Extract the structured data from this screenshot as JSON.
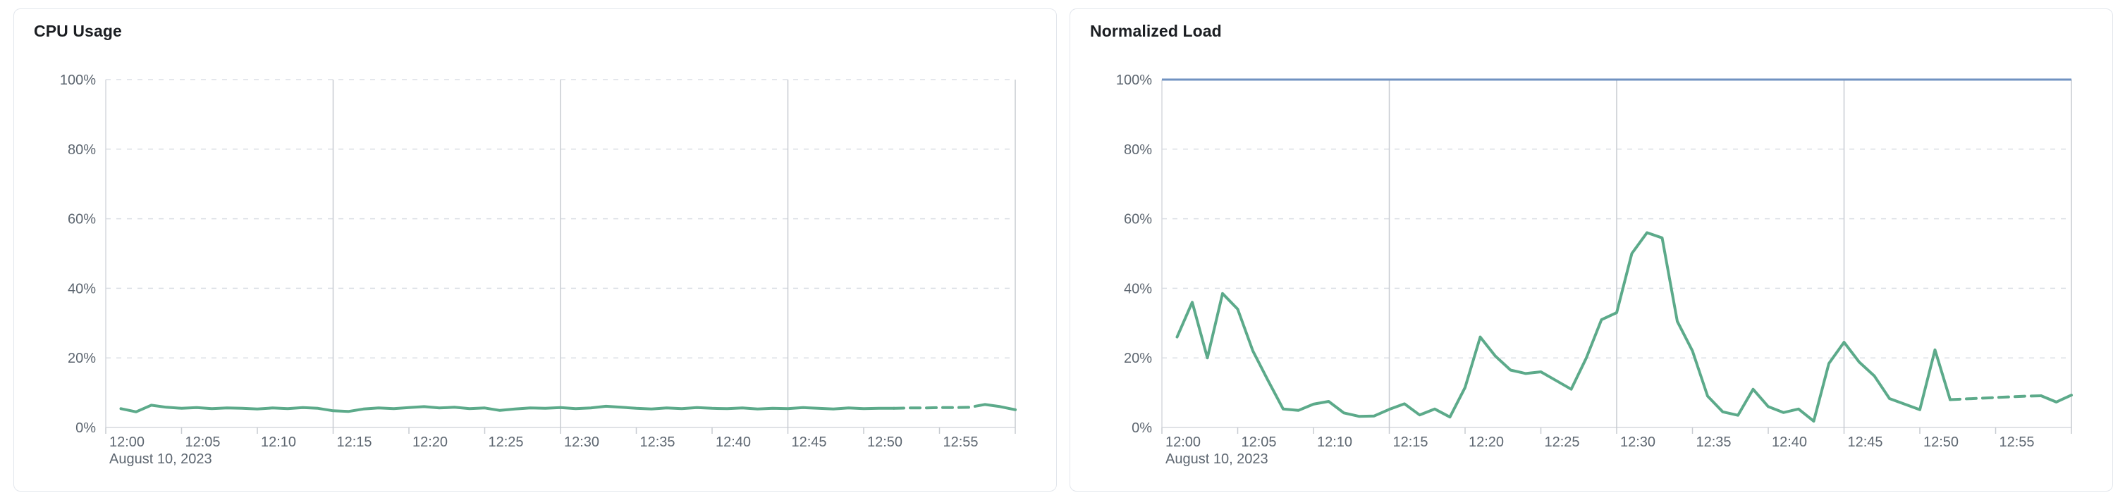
{
  "colors": {
    "card_background": "#ffffff",
    "card_border": "#e2e6ec",
    "title_text": "#1b1e22",
    "axis_text": "#5d6670",
    "grid_dashed": "#dbdfe5",
    "grid_solid_vertical": "#c7cbd1",
    "axis_line": "#d6d9de",
    "cpu_line_green": "#5caa8a",
    "limit_line_blue": "#7092c1"
  },
  "chart_data": [
    {
      "id": "cpu-usage",
      "type": "line",
      "title": "CPU Usage",
      "date_label": "August 10, 2023",
      "ylim": [
        0,
        100
      ],
      "grid": "on",
      "y_ticks": [
        {
          "v": 0,
          "label": "0%"
        },
        {
          "v": 20,
          "label": "20%"
        },
        {
          "v": 40,
          "label": "40%"
        },
        {
          "v": 60,
          "label": "60%"
        },
        {
          "v": 80,
          "label": "80%"
        },
        {
          "v": 100,
          "label": "100%"
        }
      ],
      "x_ticks": [
        {
          "min": 0,
          "label": "12:00"
        },
        {
          "min": 5,
          "label": "12:05"
        },
        {
          "min": 10,
          "label": "12:10"
        },
        {
          "min": 15,
          "label": "12:15"
        },
        {
          "min": 20,
          "label": "12:20"
        },
        {
          "min": 25,
          "label": "12:25"
        },
        {
          "min": 30,
          "label": "12:30"
        },
        {
          "min": 35,
          "label": "12:35"
        },
        {
          "min": 40,
          "label": "12:40"
        },
        {
          "min": 45,
          "label": "12:45"
        },
        {
          "min": 50,
          "label": "12:50"
        },
        {
          "min": 55,
          "label": "12:55"
        }
      ],
      "x_major_gridlines_min": [
        15,
        30,
        45,
        60
      ],
      "limit_value": null,
      "line_color": "#5caa8a",
      "dashed_from_minute": 52,
      "dashed_to_minute": 58,
      "minutes": [
        1,
        2,
        3,
        4,
        5,
        6,
        7,
        8,
        9,
        10,
        11,
        12,
        13,
        14,
        15,
        16,
        17,
        18,
        19,
        20,
        21,
        22,
        23,
        24,
        25,
        26,
        27,
        28,
        29,
        30,
        31,
        32,
        33,
        34,
        35,
        36,
        37,
        38,
        39,
        40,
        41,
        42,
        43,
        44,
        45,
        46,
        47,
        48,
        49,
        50,
        51,
        52,
        53,
        54,
        55,
        56,
        57,
        58,
        59,
        60
      ],
      "values": [
        5.4,
        4.5,
        6.4,
        5.8,
        5.5,
        5.7,
        5.4,
        5.6,
        5.5,
        5.3,
        5.6,
        5.4,
        5.7,
        5.5,
        4.8,
        4.6,
        5.3,
        5.6,
        5.4,
        5.7,
        6.0,
        5.6,
        5.8,
        5.4,
        5.6,
        4.9,
        5.3,
        5.6,
        5.5,
        5.7,
        5.4,
        5.6,
        6.1,
        5.8,
        5.5,
        5.3,
        5.6,
        5.4,
        5.7,
        5.5,
        5.4,
        5.6,
        5.3,
        5.5,
        5.4,
        5.7,
        5.5,
        5.3,
        5.6,
        5.4,
        5.5,
        5.5,
        5.6,
        5.6,
        5.7,
        5.7,
        5.8,
        6.6,
        6.0,
        5.1
      ]
    },
    {
      "id": "normalized-load",
      "type": "line",
      "title": "Normalized Load",
      "date_label": "August 10, 2023",
      "ylim": [
        0,
        100
      ],
      "grid": "on",
      "y_ticks": [
        {
          "v": 0,
          "label": "0%"
        },
        {
          "v": 20,
          "label": "20%"
        },
        {
          "v": 40,
          "label": "40%"
        },
        {
          "v": 60,
          "label": "60%"
        },
        {
          "v": 80,
          "label": "80%"
        },
        {
          "v": 100,
          "label": "100%"
        }
      ],
      "x_ticks": [
        {
          "min": 0,
          "label": "12:00"
        },
        {
          "min": 5,
          "label": "12:05"
        },
        {
          "min": 10,
          "label": "12:10"
        },
        {
          "min": 15,
          "label": "12:15"
        },
        {
          "min": 20,
          "label": "12:20"
        },
        {
          "min": 25,
          "label": "12:25"
        },
        {
          "min": 30,
          "label": "12:30"
        },
        {
          "min": 35,
          "label": "12:35"
        },
        {
          "min": 40,
          "label": "12:40"
        },
        {
          "min": 45,
          "label": "12:45"
        },
        {
          "min": 50,
          "label": "12:50"
        },
        {
          "min": 55,
          "label": "12:55"
        }
      ],
      "x_major_gridlines_min": [
        15,
        30,
        45,
        60
      ],
      "limit_value": 100,
      "limit_color": "#7092c1",
      "line_color": "#5caa8a",
      "dashed_from_minute": 52,
      "dashed_to_minute": 58,
      "minutes": [
        1,
        2,
        3,
        4,
        5,
        6,
        7,
        8,
        9,
        10,
        11,
        12,
        13,
        14,
        15,
        16,
        17,
        18,
        19,
        20,
        21,
        22,
        23,
        24,
        25,
        26,
        27,
        28,
        29,
        30,
        31,
        32,
        33,
        34,
        35,
        36,
        37,
        38,
        39,
        40,
        41,
        42,
        43,
        44,
        45,
        46,
        47,
        48,
        49,
        50,
        51,
        52,
        53,
        54,
        55,
        56,
        57,
        58,
        59,
        60
      ],
      "values": [
        26,
        36,
        20,
        38.5,
        34,
        22,
        13.5,
        5.3,
        4.9,
        6.7,
        7.5,
        4.2,
        3.2,
        3.3,
        5.2,
        6.8,
        3.6,
        5.3,
        3.0,
        11.5,
        26,
        20.5,
        16.5,
        15.5,
        16,
        13.5,
        11,
        20,
        31,
        33,
        50,
        56,
        54.5,
        30.5,
        22,
        9,
        4.5,
        3.5,
        11,
        6,
        4.3,
        5.3,
        1.8,
        18.4,
        24.5,
        18.8,
        14.8,
        8.3,
        6.7,
        5.1,
        22.3,
        8,
        8.2,
        8.4,
        8.6,
        8.8,
        9.0,
        9.1,
        7.3,
        9.3
      ]
    }
  ]
}
